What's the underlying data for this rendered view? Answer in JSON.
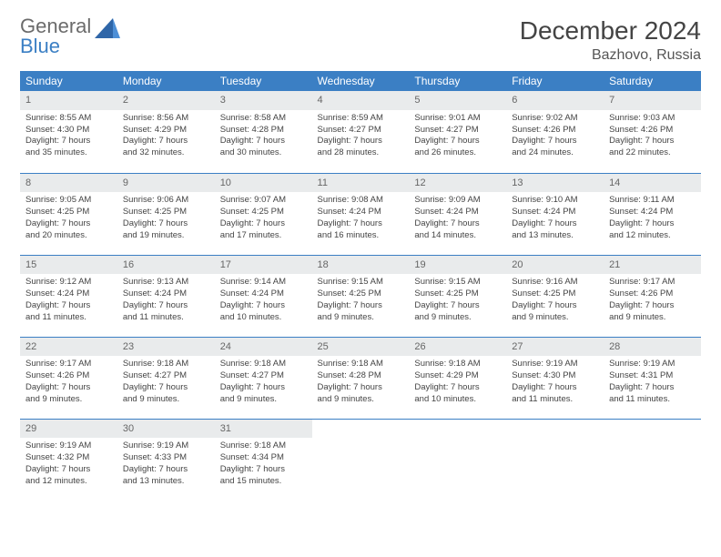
{
  "brand": {
    "name_top": "General",
    "name_bottom": "Blue"
  },
  "title": "December 2024",
  "location": "Bazhovo, Russia",
  "colors": {
    "header_bg": "#3b7fc4",
    "header_text": "#ffffff",
    "daynum_bg": "#e9ebec",
    "row_border": "#3b7fc4",
    "body_text": "#444444",
    "brand_grey": "#6b6b6b",
    "brand_blue": "#3b7fc4"
  },
  "weekdays": [
    "Sunday",
    "Monday",
    "Tuesday",
    "Wednesday",
    "Thursday",
    "Friday",
    "Saturday"
  ],
  "weeks": [
    [
      {
        "n": "1",
        "sr": "Sunrise: 8:55 AM",
        "ss": "Sunset: 4:30 PM",
        "d1": "Daylight: 7 hours",
        "d2": "and 35 minutes."
      },
      {
        "n": "2",
        "sr": "Sunrise: 8:56 AM",
        "ss": "Sunset: 4:29 PM",
        "d1": "Daylight: 7 hours",
        "d2": "and 32 minutes."
      },
      {
        "n": "3",
        "sr": "Sunrise: 8:58 AM",
        "ss": "Sunset: 4:28 PM",
        "d1": "Daylight: 7 hours",
        "d2": "and 30 minutes."
      },
      {
        "n": "4",
        "sr": "Sunrise: 8:59 AM",
        "ss": "Sunset: 4:27 PM",
        "d1": "Daylight: 7 hours",
        "d2": "and 28 minutes."
      },
      {
        "n": "5",
        "sr": "Sunrise: 9:01 AM",
        "ss": "Sunset: 4:27 PM",
        "d1": "Daylight: 7 hours",
        "d2": "and 26 minutes."
      },
      {
        "n": "6",
        "sr": "Sunrise: 9:02 AM",
        "ss": "Sunset: 4:26 PM",
        "d1": "Daylight: 7 hours",
        "d2": "and 24 minutes."
      },
      {
        "n": "7",
        "sr": "Sunrise: 9:03 AM",
        "ss": "Sunset: 4:26 PM",
        "d1": "Daylight: 7 hours",
        "d2": "and 22 minutes."
      }
    ],
    [
      {
        "n": "8",
        "sr": "Sunrise: 9:05 AM",
        "ss": "Sunset: 4:25 PM",
        "d1": "Daylight: 7 hours",
        "d2": "and 20 minutes."
      },
      {
        "n": "9",
        "sr": "Sunrise: 9:06 AM",
        "ss": "Sunset: 4:25 PM",
        "d1": "Daylight: 7 hours",
        "d2": "and 19 minutes."
      },
      {
        "n": "10",
        "sr": "Sunrise: 9:07 AM",
        "ss": "Sunset: 4:25 PM",
        "d1": "Daylight: 7 hours",
        "d2": "and 17 minutes."
      },
      {
        "n": "11",
        "sr": "Sunrise: 9:08 AM",
        "ss": "Sunset: 4:24 PM",
        "d1": "Daylight: 7 hours",
        "d2": "and 16 minutes."
      },
      {
        "n": "12",
        "sr": "Sunrise: 9:09 AM",
        "ss": "Sunset: 4:24 PM",
        "d1": "Daylight: 7 hours",
        "d2": "and 14 minutes."
      },
      {
        "n": "13",
        "sr": "Sunrise: 9:10 AM",
        "ss": "Sunset: 4:24 PM",
        "d1": "Daylight: 7 hours",
        "d2": "and 13 minutes."
      },
      {
        "n": "14",
        "sr": "Sunrise: 9:11 AM",
        "ss": "Sunset: 4:24 PM",
        "d1": "Daylight: 7 hours",
        "d2": "and 12 minutes."
      }
    ],
    [
      {
        "n": "15",
        "sr": "Sunrise: 9:12 AM",
        "ss": "Sunset: 4:24 PM",
        "d1": "Daylight: 7 hours",
        "d2": "and 11 minutes."
      },
      {
        "n": "16",
        "sr": "Sunrise: 9:13 AM",
        "ss": "Sunset: 4:24 PM",
        "d1": "Daylight: 7 hours",
        "d2": "and 11 minutes."
      },
      {
        "n": "17",
        "sr": "Sunrise: 9:14 AM",
        "ss": "Sunset: 4:24 PM",
        "d1": "Daylight: 7 hours",
        "d2": "and 10 minutes."
      },
      {
        "n": "18",
        "sr": "Sunrise: 9:15 AM",
        "ss": "Sunset: 4:25 PM",
        "d1": "Daylight: 7 hours",
        "d2": "and 9 minutes."
      },
      {
        "n": "19",
        "sr": "Sunrise: 9:15 AM",
        "ss": "Sunset: 4:25 PM",
        "d1": "Daylight: 7 hours",
        "d2": "and 9 minutes."
      },
      {
        "n": "20",
        "sr": "Sunrise: 9:16 AM",
        "ss": "Sunset: 4:25 PM",
        "d1": "Daylight: 7 hours",
        "d2": "and 9 minutes."
      },
      {
        "n": "21",
        "sr": "Sunrise: 9:17 AM",
        "ss": "Sunset: 4:26 PM",
        "d1": "Daylight: 7 hours",
        "d2": "and 9 minutes."
      }
    ],
    [
      {
        "n": "22",
        "sr": "Sunrise: 9:17 AM",
        "ss": "Sunset: 4:26 PM",
        "d1": "Daylight: 7 hours",
        "d2": "and 9 minutes."
      },
      {
        "n": "23",
        "sr": "Sunrise: 9:18 AM",
        "ss": "Sunset: 4:27 PM",
        "d1": "Daylight: 7 hours",
        "d2": "and 9 minutes."
      },
      {
        "n": "24",
        "sr": "Sunrise: 9:18 AM",
        "ss": "Sunset: 4:27 PM",
        "d1": "Daylight: 7 hours",
        "d2": "and 9 minutes."
      },
      {
        "n": "25",
        "sr": "Sunrise: 9:18 AM",
        "ss": "Sunset: 4:28 PM",
        "d1": "Daylight: 7 hours",
        "d2": "and 9 minutes."
      },
      {
        "n": "26",
        "sr": "Sunrise: 9:18 AM",
        "ss": "Sunset: 4:29 PM",
        "d1": "Daylight: 7 hours",
        "d2": "and 10 minutes."
      },
      {
        "n": "27",
        "sr": "Sunrise: 9:19 AM",
        "ss": "Sunset: 4:30 PM",
        "d1": "Daylight: 7 hours",
        "d2": "and 11 minutes."
      },
      {
        "n": "28",
        "sr": "Sunrise: 9:19 AM",
        "ss": "Sunset: 4:31 PM",
        "d1": "Daylight: 7 hours",
        "d2": "and 11 minutes."
      }
    ],
    [
      {
        "n": "29",
        "sr": "Sunrise: 9:19 AM",
        "ss": "Sunset: 4:32 PM",
        "d1": "Daylight: 7 hours",
        "d2": "and 12 minutes."
      },
      {
        "n": "30",
        "sr": "Sunrise: 9:19 AM",
        "ss": "Sunset: 4:33 PM",
        "d1": "Daylight: 7 hours",
        "d2": "and 13 minutes."
      },
      {
        "n": "31",
        "sr": "Sunrise: 9:18 AM",
        "ss": "Sunset: 4:34 PM",
        "d1": "Daylight: 7 hours",
        "d2": "and 15 minutes."
      },
      {
        "empty": true
      },
      {
        "empty": true
      },
      {
        "empty": true
      },
      {
        "empty": true
      }
    ]
  ]
}
